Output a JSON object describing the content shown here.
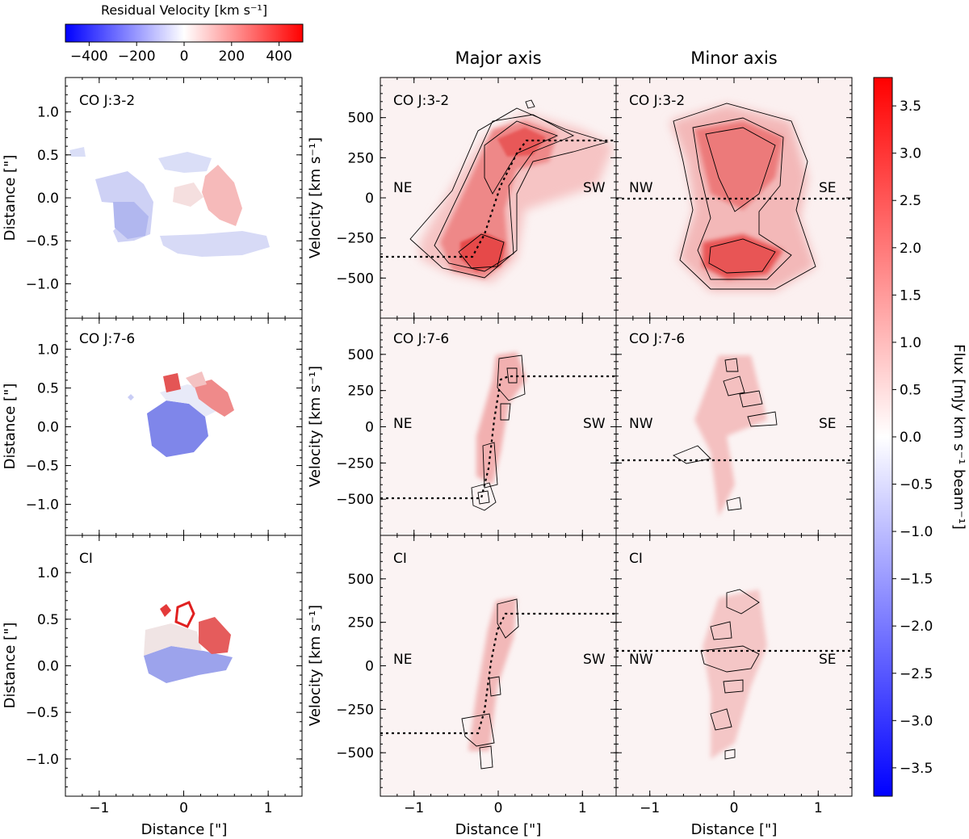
{
  "chart_data": {
    "type": "heatmap",
    "column_titles": {
      "major": "Major axis",
      "minor": "Minor axis"
    },
    "colorbar_top": {
      "title": "Residual Velocity [km s⁻¹]",
      "range": [
        -500,
        500
      ],
      "ticks": [
        -400,
        -200,
        0,
        200,
        400
      ],
      "tick_labels": [
        "−400",
        "−200",
        "0",
        "200",
        "400"
      ],
      "cmap": "bwr"
    },
    "colorbar_right": {
      "label": "Flux [mJy km s⁻¹ beam⁻¹]",
      "range": [
        -3.8,
        3.8
      ],
      "ticks": [
        3.5,
        3.0,
        2.5,
        2.0,
        1.5,
        1.0,
        0.5,
        0.0,
        -0.5,
        -1.0,
        -1.5,
        -2.0,
        -2.5,
        -3.0,
        -3.5
      ],
      "tick_labels": [
        "3.5",
        "3.0",
        "2.5",
        "2.0",
        "1.5",
        "1.0",
        "0.5",
        "0.0",
        "−0.5",
        "−1.0",
        "−1.5",
        "−2.0",
        "−2.5",
        "−3.0",
        "−3.5"
      ],
      "cmap": "bwr"
    },
    "axes": {
      "map_xlabel": "Distance [\"]",
      "map_ylabel": "Distance [\"]",
      "pv_xlabel": "Distance [\"]",
      "pv_ylabel": "Velocity [km s⁻¹]",
      "map_xlim": [
        -1.4,
        1.4
      ],
      "map_ylim": [
        -1.4,
        1.4
      ],
      "map_xticks": [
        -1,
        0,
        1
      ],
      "map_xtick_labels": [
        "−1",
        "0",
        "1"
      ],
      "map_yticks": [
        1.0,
        0.5,
        0.0,
        -0.5,
        -1.0
      ],
      "map_ytick_labels": [
        "1.0",
        "0.5",
        "0.0",
        "−0.5",
        "−1.0"
      ],
      "pv_xlim": [
        -1.4,
        1.4
      ],
      "pv_ylim": [
        -750,
        750
      ],
      "pv_xticks": [
        -1,
        0,
        1
      ],
      "pv_xtick_labels": [
        "−1",
        "0",
        "1"
      ],
      "pv_yticks": [
        500,
        250,
        0,
        -250,
        -500
      ],
      "pv_ytick_labels": [
        "500",
        "250",
        "0",
        "−250",
        "−500"
      ]
    },
    "rows": [
      {
        "label": "CO J:3-2",
        "major_dirs": [
          "NE",
          "SW"
        ],
        "minor_dirs": [
          "NW",
          "SE"
        ],
        "systemic_velocity_kms": 360,
        "major_emission_ridge": [
          [
            -0.35,
            -330
          ],
          [
            -0.2,
            -300
          ],
          [
            0.0,
            -150
          ],
          [
            0.15,
            0
          ],
          [
            0.3,
            200
          ],
          [
            0.35,
            340
          ]
        ],
        "minor_emission_peaks": [
          [
            -0.1,
            340
          ],
          [
            0.1,
            150
          ],
          [
            0.0,
            -350
          ]
        ]
      },
      {
        "label": "CO J:7-6",
        "major_dirs": [
          "NE",
          "SW"
        ],
        "minor_dirs": [
          "NW",
          "SE"
        ],
        "systemic_velocity_kms": 375,
        "major_emission_ridge": [
          [
            -0.15,
            -380
          ],
          [
            -0.1,
            -250
          ],
          [
            0.0,
            -100
          ],
          [
            0.05,
            100
          ],
          [
            0.1,
            250
          ],
          [
            0.2,
            390
          ]
        ],
        "minor_emission_peaks": [
          [
            -0.05,
            380
          ],
          [
            0.0,
            300
          ],
          [
            0.1,
            120
          ],
          [
            -0.3,
            30
          ],
          [
            0.0,
            -400
          ]
        ]
      },
      {
        "label": "CI",
        "major_dirs": [
          "NE",
          "SW"
        ],
        "minor_dirs": [
          "NW",
          "SE"
        ],
        "systemic_velocity_kms": 385,
        "major_emission_ridge": [
          [
            -0.2,
            -420
          ],
          [
            -0.15,
            -250
          ],
          [
            0.0,
            -50
          ],
          [
            0.05,
            150
          ],
          [
            0.1,
            380
          ]
        ],
        "minor_emission_peaks": [
          [
            0.0,
            350
          ],
          [
            -0.1,
            120
          ],
          [
            0.0,
            -100
          ],
          [
            -0.2,
            -420
          ]
        ]
      }
    ]
  }
}
